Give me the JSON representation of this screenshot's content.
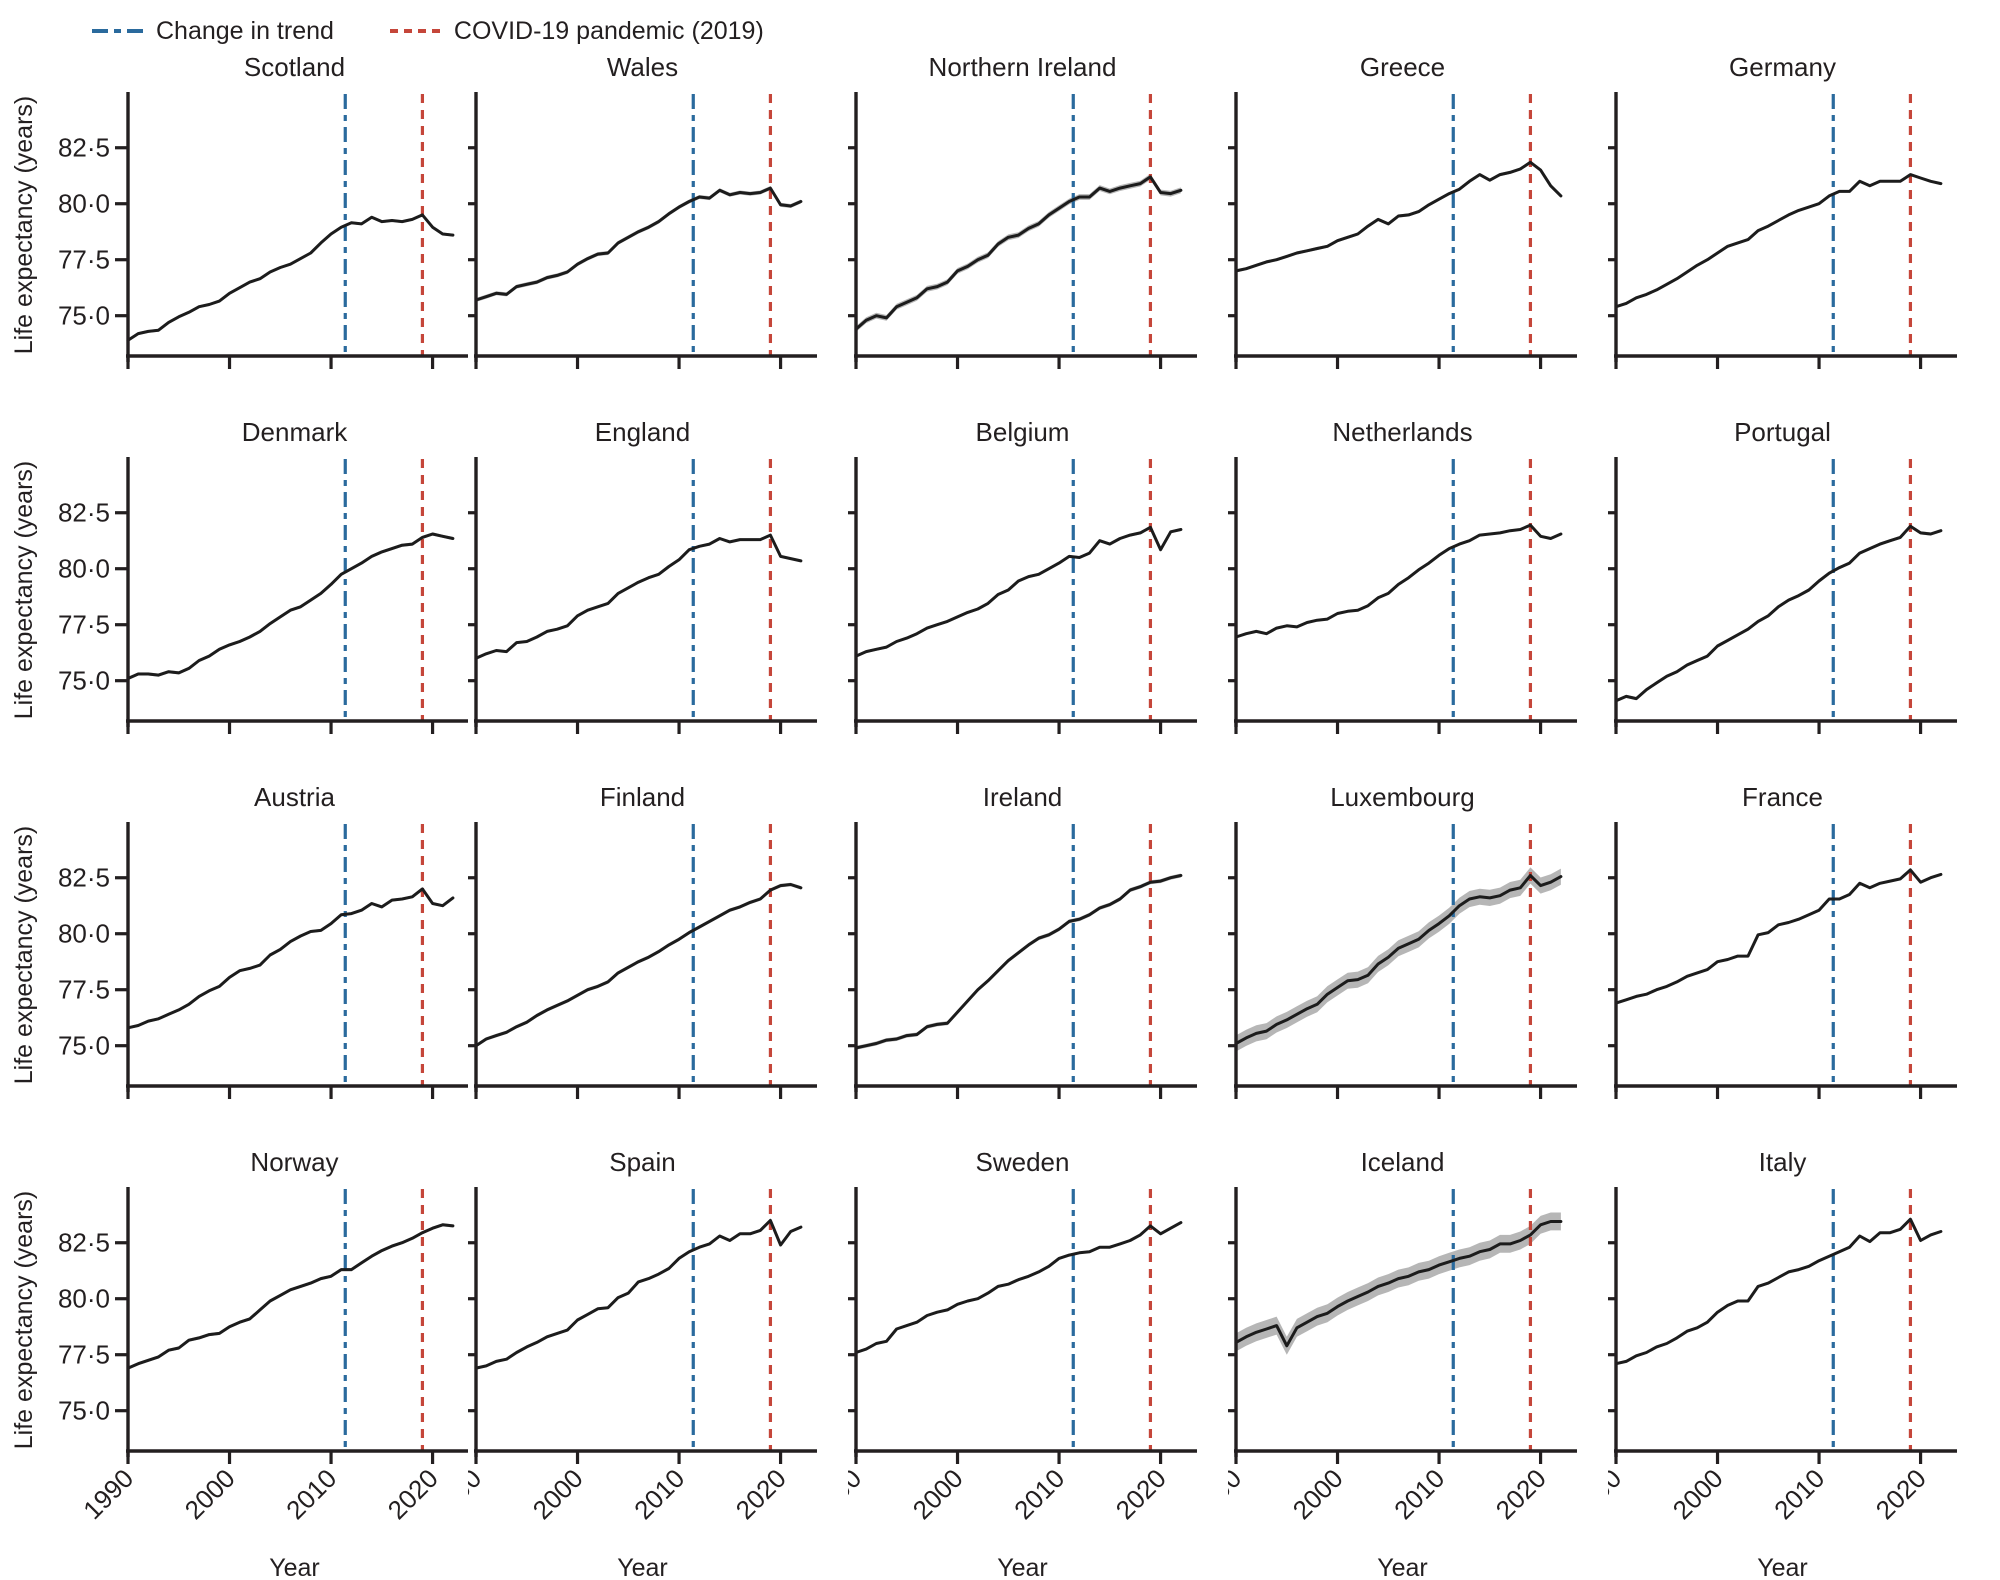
{
  "legend": {
    "items": [
      {
        "label": "Change in trend",
        "color": "#2a6a9d",
        "style": "dash-dot"
      },
      {
        "label": "COVID-19 pandemic (2019)",
        "color": "#c5463a",
        "style": "dashed"
      }
    ]
  },
  "axes": {
    "y_label": "Life expectancy (years)",
    "x_label": "Year",
    "y_domain": [
      73.2,
      84.9
    ],
    "x_domain": [
      1990,
      2022.8
    ],
    "y_ticks": [
      {
        "value": 82.5,
        "label": "82·5"
      },
      {
        "value": 80.0,
        "label": "80·0"
      },
      {
        "value": 77.5,
        "label": "77·5"
      },
      {
        "value": 75.0,
        "label": "75·0"
      }
    ],
    "x_ticks": [
      {
        "value": 1990,
        "label": "1990"
      },
      {
        "value": 2000,
        "label": "2000"
      },
      {
        "value": 2010,
        "label": "2010"
      },
      {
        "value": 2020,
        "label": "2020"
      }
    ]
  },
  "markers": {
    "trend_change_year": 2011.4,
    "pandemic_year": 2019
  },
  "style": {
    "line_color": "#1c1c1c",
    "band_color": "#a9a9a9",
    "axis_color": "#231f20"
  },
  "chart_data": {
    "type": "line",
    "grid": {
      "rows": 4,
      "cols": 5
    },
    "x": [
      1990,
      1991,
      1992,
      1993,
      1994,
      1995,
      1996,
      1997,
      1998,
      1999,
      2000,
      2001,
      2002,
      2003,
      2004,
      2005,
      2006,
      2007,
      2008,
      2009,
      2010,
      2011,
      2012,
      2013,
      2014,
      2015,
      2016,
      2017,
      2018,
      2019,
      2020,
      2021,
      2022
    ],
    "series": [
      {
        "name": "Scotland",
        "ci": 0.06,
        "values": [
          73.9,
          74.2,
          74.3,
          74.35,
          74.7,
          74.95,
          75.15,
          75.4,
          75.5,
          75.65,
          76.0,
          76.25,
          76.5,
          76.65,
          76.95,
          77.15,
          77.3,
          77.55,
          77.8,
          78.25,
          78.65,
          78.95,
          79.15,
          79.1,
          79.4,
          79.2,
          79.25,
          79.2,
          79.3,
          79.5,
          78.95,
          78.65,
          78.6
        ]
      },
      {
        "name": "Wales",
        "ci": 0.09,
        "values": [
          75.7,
          75.85,
          76.0,
          75.95,
          76.3,
          76.4,
          76.5,
          76.7,
          76.8,
          76.95,
          77.3,
          77.55,
          77.75,
          77.8,
          78.25,
          78.5,
          78.75,
          78.95,
          79.2,
          79.55,
          79.85,
          80.1,
          80.3,
          80.25,
          80.6,
          80.4,
          80.5,
          80.45,
          80.5,
          80.7,
          79.95,
          79.9,
          80.1
        ]
      },
      {
        "name": "Northern Ireland",
        "ci": 0.13,
        "values": [
          74.4,
          74.8,
          75.0,
          74.9,
          75.4,
          75.6,
          75.8,
          76.2,
          76.3,
          76.5,
          77.0,
          77.2,
          77.5,
          77.7,
          78.2,
          78.5,
          78.6,
          78.9,
          79.1,
          79.5,
          79.8,
          80.1,
          80.3,
          80.3,
          80.7,
          80.55,
          80.7,
          80.8,
          80.9,
          81.2,
          80.5,
          80.45,
          80.6
        ]
      },
      {
        "name": "Greece",
        "ci": 0.07,
        "values": [
          77.0,
          77.1,
          77.25,
          77.4,
          77.5,
          77.65,
          77.8,
          77.9,
          78.0,
          78.1,
          78.35,
          78.5,
          78.65,
          79.0,
          79.3,
          79.1,
          79.45,
          79.5,
          79.65,
          79.95,
          80.2,
          80.45,
          80.65,
          81.0,
          81.3,
          81.05,
          81.3,
          81.4,
          81.55,
          81.85,
          81.5,
          80.8,
          80.35
        ]
      },
      {
        "name": "Germany",
        "ci": 0.03,
        "values": [
          75.4,
          75.55,
          75.8,
          75.95,
          76.15,
          76.4,
          76.65,
          76.95,
          77.25,
          77.5,
          77.8,
          78.1,
          78.25,
          78.4,
          78.8,
          79.0,
          79.25,
          79.5,
          79.7,
          79.85,
          80.0,
          80.35,
          80.55,
          80.55,
          81.0,
          80.8,
          81.0,
          81.0,
          81.0,
          81.3,
          81.15,
          81.0,
          80.9
        ]
      },
      {
        "name": "Denmark",
        "ci": 0.07,
        "values": [
          75.1,
          75.3,
          75.3,
          75.25,
          75.4,
          75.35,
          75.55,
          75.9,
          76.1,
          76.4,
          76.6,
          76.75,
          76.95,
          77.2,
          77.55,
          77.85,
          78.15,
          78.3,
          78.6,
          78.9,
          79.3,
          79.75,
          80.0,
          80.25,
          80.55,
          80.75,
          80.9,
          81.05,
          81.1,
          81.4,
          81.55,
          81.45,
          81.35
        ]
      },
      {
        "name": "England",
        "ci": 0.025,
        "values": [
          76.0,
          76.2,
          76.35,
          76.3,
          76.7,
          76.75,
          76.95,
          77.2,
          77.3,
          77.45,
          77.9,
          78.15,
          78.3,
          78.45,
          78.9,
          79.15,
          79.4,
          79.6,
          79.75,
          80.1,
          80.4,
          80.85,
          81.0,
          81.1,
          81.35,
          81.2,
          81.3,
          81.3,
          81.3,
          81.5,
          80.55,
          80.45,
          80.35
        ]
      },
      {
        "name": "Belgium",
        "ci": 0.06,
        "values": [
          76.1,
          76.3,
          76.4,
          76.5,
          76.75,
          76.9,
          77.1,
          77.35,
          77.5,
          77.65,
          77.85,
          78.05,
          78.2,
          78.45,
          78.85,
          79.05,
          79.45,
          79.65,
          79.75,
          80.0,
          80.25,
          80.55,
          80.5,
          80.7,
          81.25,
          81.1,
          81.35,
          81.5,
          81.6,
          81.85,
          80.85,
          81.65,
          81.75
        ]
      },
      {
        "name": "Netherlands",
        "ci": 0.05,
        "values": [
          76.95,
          77.1,
          77.2,
          77.1,
          77.35,
          77.45,
          77.4,
          77.6,
          77.7,
          77.75,
          78.0,
          78.1,
          78.15,
          78.35,
          78.7,
          78.9,
          79.3,
          79.6,
          79.95,
          80.25,
          80.6,
          80.9,
          81.1,
          81.25,
          81.5,
          81.55,
          81.6,
          81.7,
          81.75,
          81.95,
          81.45,
          81.35,
          81.55
        ]
      },
      {
        "name": "Portugal",
        "ci": 0.07,
        "values": [
          74.1,
          74.3,
          74.2,
          74.6,
          74.9,
          75.2,
          75.4,
          75.7,
          75.9,
          76.1,
          76.55,
          76.8,
          77.05,
          77.3,
          77.65,
          77.9,
          78.3,
          78.6,
          78.8,
          79.05,
          79.45,
          79.8,
          80.05,
          80.25,
          80.7,
          80.9,
          81.1,
          81.25,
          81.4,
          81.9,
          81.6,
          81.55,
          81.7
        ]
      },
      {
        "name": "Austria",
        "ci": 0.06,
        "values": [
          75.8,
          75.9,
          76.1,
          76.2,
          76.4,
          76.6,
          76.85,
          77.2,
          77.45,
          77.65,
          78.05,
          78.35,
          78.45,
          78.6,
          79.05,
          79.3,
          79.65,
          79.9,
          80.1,
          80.15,
          80.45,
          80.85,
          80.9,
          81.05,
          81.35,
          81.2,
          81.5,
          81.55,
          81.65,
          82.0,
          81.35,
          81.25,
          81.6
        ]
      },
      {
        "name": "Finland",
        "ci": 0.08,
        "values": [
          75.0,
          75.3,
          75.45,
          75.6,
          75.85,
          76.05,
          76.35,
          76.6,
          76.8,
          77.0,
          77.25,
          77.5,
          77.65,
          77.85,
          78.25,
          78.5,
          78.75,
          78.95,
          79.2,
          79.5,
          79.75,
          80.05,
          80.3,
          80.55,
          80.8,
          81.05,
          81.2,
          81.4,
          81.55,
          81.95,
          82.15,
          82.2,
          82.05
        ]
      },
      {
        "name": "Ireland",
        "ci": 0.09,
        "values": [
          74.9,
          75.0,
          75.1,
          75.25,
          75.3,
          75.45,
          75.5,
          75.85,
          75.95,
          76.0,
          76.5,
          77.0,
          77.5,
          77.9,
          78.35,
          78.8,
          79.15,
          79.5,
          79.8,
          79.95,
          80.2,
          80.55,
          80.65,
          80.85,
          81.15,
          81.3,
          81.55,
          81.95,
          82.1,
          82.3,
          82.35,
          82.5,
          82.6
        ]
      },
      {
        "name": "Luxembourg",
        "ci": 0.36,
        "values": [
          75.1,
          75.35,
          75.55,
          75.65,
          75.95,
          76.15,
          76.4,
          76.65,
          76.85,
          77.3,
          77.6,
          77.9,
          77.95,
          78.15,
          78.65,
          78.95,
          79.35,
          79.55,
          79.75,
          80.15,
          80.45,
          80.8,
          81.25,
          81.55,
          81.65,
          81.6,
          81.7,
          81.95,
          82.05,
          82.6,
          82.15,
          82.3,
          82.55
        ]
      },
      {
        "name": "France",
        "ci": 0.03,
        "values": [
          76.9,
          77.05,
          77.2,
          77.3,
          77.5,
          77.65,
          77.85,
          78.1,
          78.25,
          78.4,
          78.75,
          78.85,
          79.0,
          79.0,
          79.95,
          80.05,
          80.4,
          80.5,
          80.65,
          80.85,
          81.05,
          81.55,
          81.55,
          81.75,
          82.25,
          82.05,
          82.25,
          82.35,
          82.45,
          82.85,
          82.3,
          82.5,
          82.65
        ]
      },
      {
        "name": "Norway",
        "ci": 0.07,
        "values": [
          76.9,
          77.1,
          77.25,
          77.4,
          77.7,
          77.8,
          78.15,
          78.25,
          78.4,
          78.45,
          78.75,
          78.95,
          79.1,
          79.5,
          79.9,
          80.15,
          80.4,
          80.55,
          80.7,
          80.9,
          81.0,
          81.3,
          81.3,
          81.6,
          81.9,
          82.15,
          82.35,
          82.5,
          82.7,
          82.95,
          83.15,
          83.3,
          83.25
        ]
      },
      {
        "name": "Spain",
        "ci": 0.04,
        "values": [
          76.9,
          77.0,
          77.2,
          77.3,
          77.6,
          77.85,
          78.05,
          78.3,
          78.45,
          78.6,
          79.05,
          79.3,
          79.55,
          79.6,
          80.05,
          80.25,
          80.75,
          80.9,
          81.1,
          81.35,
          81.8,
          82.1,
          82.3,
          82.45,
          82.8,
          82.6,
          82.9,
          82.9,
          83.05,
          83.5,
          82.4,
          83.0,
          83.2
        ]
      },
      {
        "name": "Sweden",
        "ci": 0.05,
        "values": [
          77.6,
          77.75,
          78.0,
          78.1,
          78.65,
          78.8,
          78.95,
          79.25,
          79.4,
          79.5,
          79.75,
          79.9,
          80.0,
          80.25,
          80.55,
          80.65,
          80.85,
          81.0,
          81.2,
          81.45,
          81.8,
          81.95,
          82.05,
          82.1,
          82.3,
          82.3,
          82.45,
          82.6,
          82.85,
          83.25,
          82.9,
          83.15,
          83.4
        ]
      },
      {
        "name": "Iceland",
        "ci": 0.4,
        "values": [
          78.05,
          78.3,
          78.5,
          78.65,
          78.8,
          77.9,
          78.7,
          78.95,
          79.2,
          79.35,
          79.65,
          79.9,
          80.1,
          80.3,
          80.55,
          80.7,
          80.9,
          81.0,
          81.2,
          81.3,
          81.5,
          81.65,
          81.8,
          81.9,
          82.1,
          82.2,
          82.45,
          82.45,
          82.6,
          82.85,
          83.3,
          83.45,
          83.45
        ]
      },
      {
        "name": "Italy",
        "ci": 0.03,
        "values": [
          77.1,
          77.2,
          77.45,
          77.6,
          77.85,
          78.0,
          78.25,
          78.55,
          78.7,
          78.95,
          79.4,
          79.7,
          79.9,
          79.9,
          80.55,
          80.7,
          80.95,
          81.2,
          81.3,
          81.45,
          81.7,
          81.9,
          82.1,
          82.3,
          82.8,
          82.55,
          82.95,
          82.95,
          83.1,
          83.55,
          82.6,
          82.85,
          83.0
        ]
      }
    ]
  }
}
